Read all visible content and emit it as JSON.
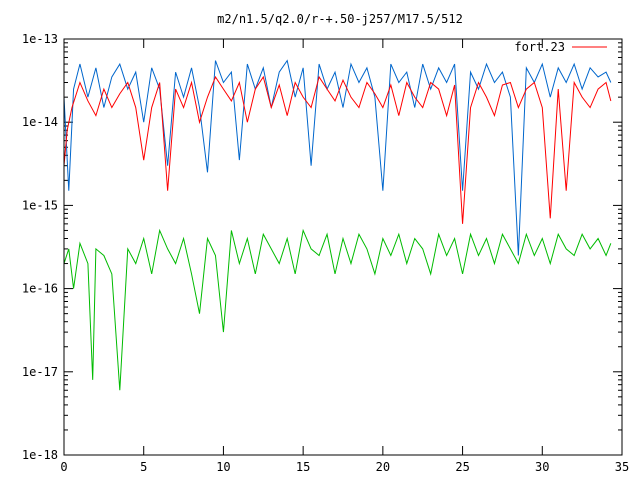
{
  "chart_data": {
    "type": "line",
    "title": "m2/n1.5/q2.0/r-+.50-j257/M17.5/512",
    "xlabel": "",
    "ylabel": "",
    "xlim": [
      0,
      35
    ],
    "ylim": [
      1e-18,
      1e-13
    ],
    "yscale": "log",
    "grid": false,
    "legend_position": "top-right",
    "x_ticks": [
      "0",
      "5",
      "10",
      "15",
      "20",
      "25",
      "30",
      "35"
    ],
    "y_ticks": [
      "1e-18",
      "1e-17",
      "1e-16",
      "1e-15",
      "1e-14",
      "1e-13"
    ],
    "series": [
      {
        "name": "fort.23",
        "color": "#ff0000",
        "x": [
          0.0,
          0.2,
          0.5,
          1.0,
          1.5,
          2.0,
          2.5,
          3.0,
          3.5,
          4.0,
          4.5,
          5.0,
          5.5,
          6.0,
          6.5,
          7.0,
          7.5,
          8.0,
          8.5,
          9.0,
          9.5,
          10.0,
          10.5,
          11.0,
          11.5,
          12.0,
          12.5,
          13.0,
          13.5,
          14.0,
          14.5,
          15.0,
          15.5,
          16.0,
          16.5,
          17.0,
          17.5,
          18.0,
          18.5,
          19.0,
          19.5,
          20.0,
          20.5,
          21.0,
          21.5,
          22.0,
          22.5,
          23.0,
          23.5,
          24.0,
          24.5,
          25.0,
          25.5,
          26.0,
          26.5,
          27.0,
          27.5,
          28.0,
          28.5,
          29.0,
          29.5,
          30.0,
          30.5,
          31.0,
          31.5,
          32.0,
          32.5,
          33.0,
          33.5,
          34.0,
          34.3
        ],
        "y": [
          3e-15,
          8e-15,
          1.5e-14,
          3e-14,
          1.8e-14,
          1.2e-14,
          2.5e-14,
          1.5e-14,
          2.2e-14,
          3e-14,
          1.5e-14,
          3.5e-15,
          1.5e-14,
          3e-14,
          1.5e-15,
          2.5e-14,
          1.5e-14,
          3e-14,
          1e-14,
          2e-14,
          3.5e-14,
          2.5e-14,
          1.8e-14,
          3e-14,
          1e-14,
          2.5e-14,
          3.5e-14,
          1.5e-14,
          2.8e-14,
          1.2e-14,
          3e-14,
          2e-14,
          1.5e-14,
          3.5e-14,
          2.5e-14,
          1.8e-14,
          3.2e-14,
          2e-14,
          1.5e-14,
          3e-14,
          2.2e-14,
          1.5e-14,
          2.8e-14,
          1.2e-14,
          3e-14,
          2e-14,
          1.5e-14,
          3e-14,
          2.5e-14,
          1.2e-14,
          2.8e-14,
          6e-16,
          1.5e-14,
          3e-14,
          2e-14,
          1.2e-14,
          2.8e-14,
          3e-14,
          1.5e-14,
          2.5e-14,
          3e-14,
          1.5e-14,
          7e-16,
          2.5e-14,
          1.5e-15,
          3e-14,
          2e-14,
          1.5e-14,
          2.5e-14,
          3e-14,
          1.8e-14
        ]
      },
      {
        "name": "",
        "color": "#0066cc",
        "x": [
          0.0,
          0.3,
          0.6,
          1.0,
          1.5,
          2.0,
          2.5,
          3.0,
          3.5,
          4.0,
          4.5,
          5.0,
          5.5,
          6.0,
          6.5,
          7.0,
          7.5,
          8.0,
          8.5,
          9.0,
          9.5,
          10.0,
          10.5,
          11.0,
          11.5,
          12.0,
          12.5,
          13.0,
          13.5,
          14.0,
          14.5,
          15.0,
          15.5,
          16.0,
          16.5,
          17.0,
          17.5,
          18.0,
          18.5,
          19.0,
          19.5,
          20.0,
          20.5,
          21.0,
          21.5,
          22.0,
          22.5,
          23.0,
          23.5,
          24.0,
          24.5,
          25.0,
          25.5,
          26.0,
          26.5,
          27.0,
          27.5,
          28.0,
          28.5,
          29.0,
          29.5,
          30.0,
          30.5,
          31.0,
          31.5,
          32.0,
          32.5,
          33.0,
          33.5,
          34.0,
          34.3
        ],
        "y": [
          2e-14,
          1.5e-15,
          2.5e-14,
          5e-14,
          2e-14,
          4.5e-14,
          1.5e-14,
          3.5e-14,
          5e-14,
          2.5e-14,
          4e-14,
          1e-14,
          4.5e-14,
          2.5e-14,
          3e-15,
          4e-14,
          2e-14,
          4.5e-14,
          1.5e-14,
          2.5e-15,
          5.5e-14,
          3e-14,
          4e-14,
          3.5e-15,
          5e-14,
          2.5e-14,
          4.5e-14,
          1.5e-14,
          4e-14,
          5.5e-14,
          2e-14,
          4.5e-14,
          3e-15,
          5e-14,
          2.5e-14,
          4e-14,
          1.5e-14,
          5e-14,
          3e-14,
          4.5e-14,
          2e-14,
          1.5e-15,
          5e-14,
          3e-14,
          4e-14,
          1.5e-14,
          5e-14,
          2.5e-14,
          4.5e-14,
          3e-14,
          5e-14,
          1.5e-15,
          4e-14,
          2.5e-14,
          5e-14,
          3e-14,
          4e-14,
          2e-14,
          2.5e-16,
          4.5e-14,
          3e-14,
          5e-14,
          2e-14,
          4.5e-14,
          3e-14,
          5e-14,
          2.5e-14,
          4.5e-14,
          3.5e-14,
          4e-14,
          3e-14
        ]
      },
      {
        "name": "",
        "color": "#00bb00",
        "x": [
          0.0,
          0.3,
          0.6,
          1.0,
          1.5,
          1.8,
          2.0,
          2.5,
          3.0,
          3.5,
          4.0,
          4.5,
          5.0,
          5.5,
          6.0,
          6.5,
          7.0,
          7.5,
          8.0,
          8.5,
          9.0,
          9.5,
          10.0,
          10.5,
          11.0,
          11.5,
          12.0,
          12.5,
          13.0,
          13.5,
          14.0,
          14.5,
          15.0,
          15.5,
          16.0,
          16.5,
          17.0,
          17.5,
          18.0,
          18.5,
          19.0,
          19.5,
          20.0,
          20.5,
          21.0,
          21.5,
          22.0,
          22.5,
          23.0,
          23.5,
          24.0,
          24.5,
          25.0,
          25.5,
          26.0,
          26.5,
          27.0,
          27.5,
          28.0,
          28.5,
          29.0,
          29.5,
          30.0,
          30.5,
          31.0,
          31.5,
          32.0,
          32.5,
          33.0,
          33.5,
          34.0,
          34.3
        ],
        "y": [
          2e-16,
          3e-16,
          1e-16,
          3.5e-16,
          2e-16,
          8e-18,
          3e-16,
          2.5e-16,
          1.5e-16,
          6e-18,
          3e-16,
          2e-16,
          4e-16,
          1.5e-16,
          5e-16,
          3e-16,
          2e-16,
          4e-16,
          1.5e-16,
          5e-17,
          4e-16,
          2.5e-16,
          3e-17,
          5e-16,
          2e-16,
          4e-16,
          1.5e-16,
          4.5e-16,
          3e-16,
          2e-16,
          4e-16,
          1.5e-16,
          5e-16,
          3e-16,
          2.5e-16,
          4.5e-16,
          1.5e-16,
          4e-16,
          2e-16,
          4.5e-16,
          3e-16,
          1.5e-16,
          4e-16,
          2.5e-16,
          4.5e-16,
          2e-16,
          4e-16,
          3e-16,
          1.5e-16,
          4.5e-16,
          2.5e-16,
          4e-16,
          1.5e-16,
          4.5e-16,
          2.5e-16,
          4e-16,
          2e-16,
          4.5e-16,
          3e-16,
          2e-16,
          4.5e-16,
          2.5e-16,
          4e-16,
          2e-16,
          4.5e-16,
          3e-16,
          2.5e-16,
          4.5e-16,
          3e-16,
          4e-16,
          2.5e-16,
          3.5e-16
        ]
      }
    ]
  }
}
